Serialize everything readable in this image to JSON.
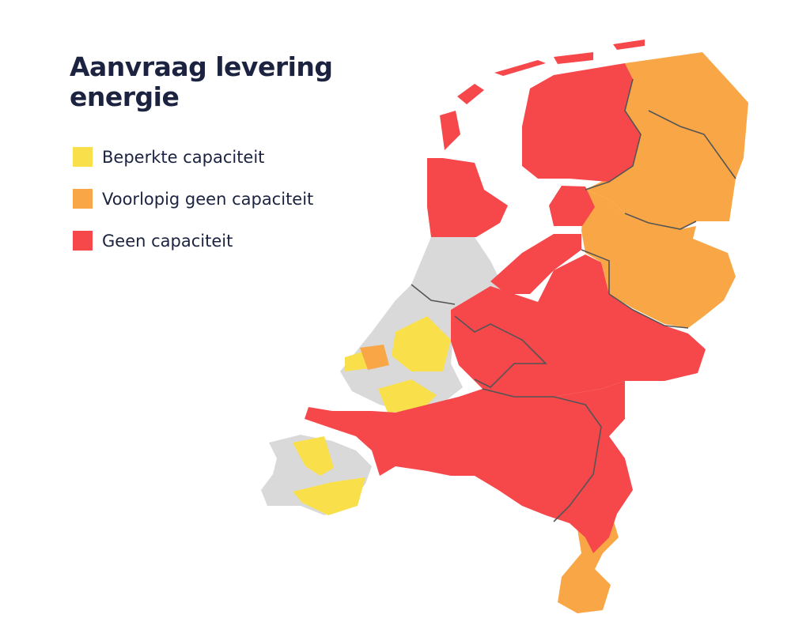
{
  "title": "Aanvraag levering energie",
  "legend": [
    {
      "label": "Beperkte capaciteit",
      "color": "#f9e04b"
    },
    {
      "label": "Voorlopig geen capaciteit",
      "color": "#f9a646"
    },
    {
      "label": "Geen capaciteit",
      "color": "#f6474b"
    }
  ],
  "no_data_color": "#d9d9d9"
}
